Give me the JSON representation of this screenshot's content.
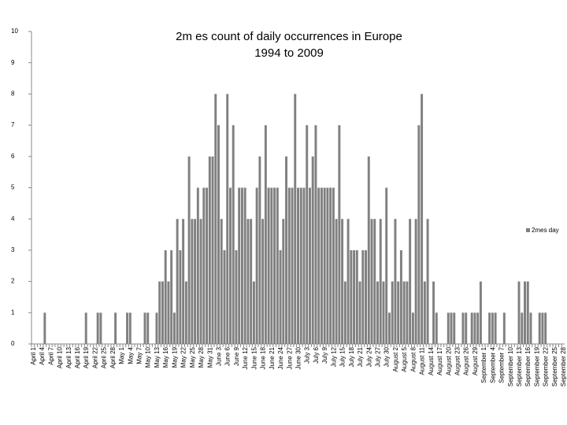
{
  "chart_data": {
    "type": "bar",
    "title": "2m es count of daily occurrences in Europe 1994 to 2009",
    "categories": [
      "April 1",
      null,
      null,
      "April 4",
      null,
      null,
      "April 7",
      null,
      null,
      "April 10",
      null,
      null,
      "April 13",
      null,
      null,
      "April 16",
      null,
      null,
      "April 19",
      null,
      null,
      "April 22",
      null,
      null,
      "April 25",
      null,
      null,
      "April 28",
      null,
      null,
      "May 1",
      null,
      null,
      "May 4",
      null,
      null,
      "May 7",
      null,
      null,
      "May 10",
      null,
      null,
      "May 13",
      null,
      null,
      "May 16",
      null,
      null,
      "May 19",
      null,
      null,
      "May 22",
      null,
      null,
      "May 25",
      null,
      null,
      "May 28",
      null,
      null,
      "May 31",
      null,
      null,
      "June 3",
      null,
      null,
      "June 6",
      null,
      null,
      "June 9",
      null,
      null,
      "June 12",
      null,
      null,
      "June 15",
      null,
      null,
      "June 18",
      null,
      null,
      "June 21",
      null,
      null,
      "June 24",
      null,
      null,
      "June 27",
      null,
      null,
      "June 30",
      null,
      null,
      "July 3",
      null,
      null,
      "July 6",
      null,
      null,
      "July 9",
      null,
      null,
      "July 12",
      null,
      null,
      "July 15",
      null,
      null,
      "July 18",
      null,
      null,
      "July 21",
      null,
      null,
      "July 24",
      null,
      null,
      "July 27",
      null,
      null,
      "July 30",
      null,
      null,
      "August 2",
      null,
      null,
      "August 5",
      null,
      null,
      "August 8",
      null,
      null,
      "August 11",
      null,
      null,
      "August 14",
      null,
      null,
      "August 17",
      null,
      null,
      "August 20",
      null,
      null,
      "August 23",
      null,
      null,
      "August 26",
      null,
      null,
      "August 29",
      null,
      null,
      "September 1",
      null,
      null,
      "September 4",
      null,
      null,
      "September 7",
      null,
      null,
      "September 10",
      null,
      null,
      "September 13",
      null,
      null,
      "September 16",
      null,
      null,
      "September 19",
      null,
      null,
      "September 22",
      null,
      null,
      "September 25",
      null,
      null,
      "September 28"
    ],
    "series": [
      {
        "name": "2mes day",
        "color": "#808080",
        "values": [
          0,
          0,
          0,
          0,
          1,
          0,
          0,
          0,
          0,
          0,
          0,
          0,
          0,
          0,
          0,
          0,
          0,
          0,
          1,
          0,
          0,
          0,
          1,
          1,
          0,
          0,
          0,
          0,
          1,
          0,
          0,
          0,
          1,
          1,
          0,
          0,
          0,
          0,
          1,
          1,
          0,
          0,
          1,
          2,
          2,
          3,
          2,
          3,
          1,
          4,
          3,
          4,
          2,
          6,
          4,
          4,
          5,
          4,
          5,
          5,
          6,
          6,
          8,
          7,
          4,
          3,
          8,
          5,
          7,
          3,
          5,
          5,
          5,
          4,
          4,
          2,
          5,
          6,
          4,
          7,
          5,
          5,
          5,
          5,
          3,
          4,
          6,
          5,
          5,
          8,
          5,
          5,
          5,
          7,
          5,
          6,
          7,
          5,
          5,
          5,
          5,
          5,
          5,
          4,
          7,
          4,
          2,
          4,
          3,
          3,
          3,
          2,
          3,
          3,
          6,
          4,
          4,
          2,
          4,
          2,
          5,
          1,
          2,
          4,
          2,
          3,
          2,
          2,
          4,
          1,
          4,
          7,
          8,
          2,
          4,
          0,
          2,
          1,
          0,
          0,
          0,
          1,
          1,
          1,
          0,
          0,
          1,
          1,
          0,
          1,
          1,
          1,
          2,
          0,
          0,
          1,
          1,
          1,
          0,
          0,
          1,
          0,
          0,
          0,
          0,
          2,
          1,
          2,
          2,
          1,
          0,
          0,
          1,
          1,
          1,
          0,
          0,
          0,
          0,
          0,
          0
        ]
      }
    ],
    "ylim": [
      0,
      10
    ],
    "yticks": [
      0,
      1,
      2,
      3,
      4,
      5,
      6,
      7,
      8,
      9,
      10
    ],
    "grid": false,
    "legend": "right"
  }
}
